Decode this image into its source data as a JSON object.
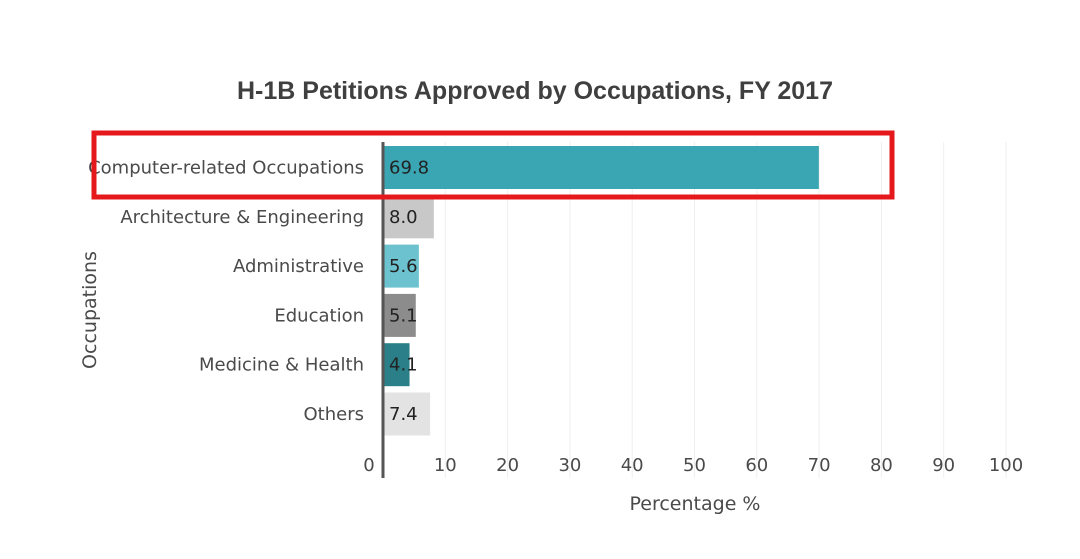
{
  "chart_data": {
    "type": "bar",
    "orientation": "horizontal",
    "title": "H-1B Petitions Approved by Occupations, FY 2017",
    "xlabel": "Percentage %",
    "ylabel": "Occupations",
    "xlim": [
      0,
      100
    ],
    "x_ticks": [
      "0",
      "10",
      "20",
      "30",
      "40",
      "50",
      "60",
      "70",
      "80",
      "90",
      "100"
    ],
    "grid": "vertical",
    "categories": [
      "Computer-related Occupations",
      "Architecture & Engineering",
      "Administrative",
      "Education",
      "Medicine & Health",
      "Others"
    ],
    "values": [
      69.8,
      8.0,
      5.6,
      5.1,
      4.1,
      7.4
    ],
    "value_labels": [
      "69.8",
      "8.0",
      "5.6",
      "5.1",
      "4.1",
      "7.4"
    ],
    "bar_colors": [
      "#3aa6b4",
      "#c8c8c8",
      "#6cc3cf",
      "#8c8c8c",
      "#2a7f88",
      "#e3e3e3"
    ],
    "highlight": {
      "category": "Computer-related Occupations",
      "color": "#e5191c"
    }
  }
}
